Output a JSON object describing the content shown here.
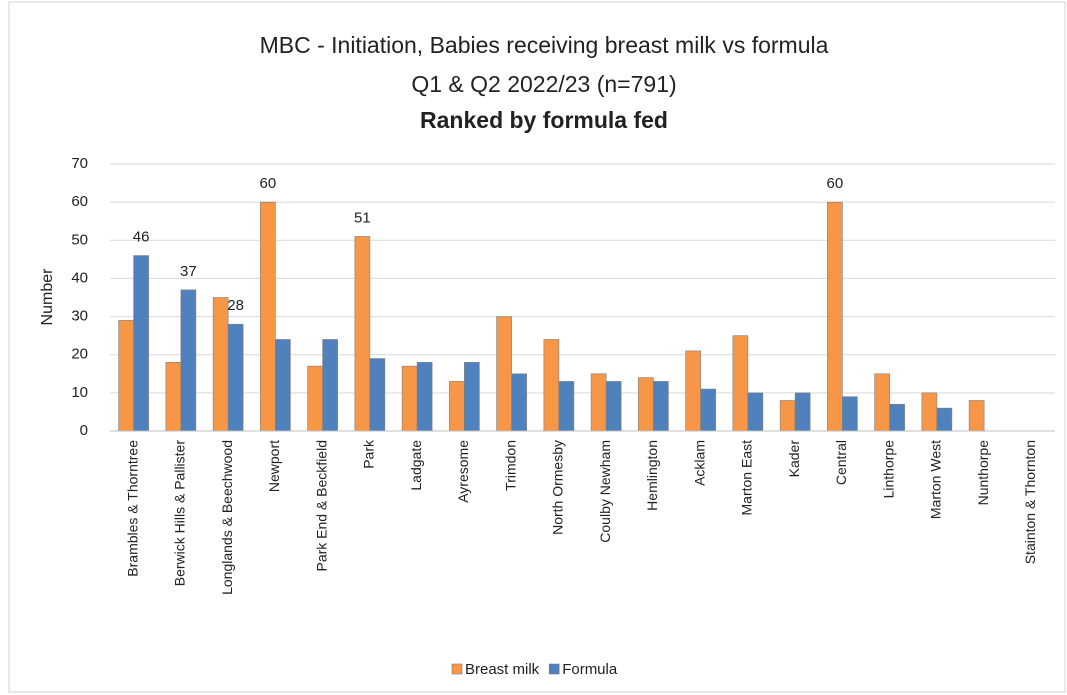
{
  "chart_data": {
    "type": "bar",
    "title": "MBC - Initiation, Babies receiving breast milk vs formula",
    "subtitle": "Q1 & Q2 2022/23 (n=791)",
    "subtitle2": "Ranked by formula fed",
    "y_label": "Number",
    "categories": [
      "Brambles & Thorntree",
      "Berwick Hills & Pallister",
      "Longlands & Beechwood",
      "Newport",
      "Park End & Beckfield",
      "Park",
      "Ladgate",
      "Ayresome",
      "Trimdon",
      "North Ormesby",
      "Coulby Newham",
      "Hemlington",
      "Acklam",
      "Marton East",
      "Kader",
      "Central",
      "Linthorpe",
      "Marton West",
      "Nunthorpe",
      "Stainton & Thornton"
    ],
    "series": [
      {
        "name": "Breast milk",
        "color": "#f79646",
        "values": [
          29,
          18,
          35,
          60,
          17,
          51,
          17,
          13,
          30,
          24,
          15,
          14,
          21,
          25,
          8,
          60,
          15,
          10,
          8,
          0
        ],
        "value_labels": [
          null,
          null,
          null,
          "60",
          null,
          "51",
          null,
          null,
          null,
          null,
          null,
          null,
          null,
          null,
          null,
          "60",
          null,
          null,
          null,
          null
        ]
      },
      {
        "name": "Formula",
        "color": "#4f81bd",
        "values": [
          46,
          37,
          28,
          24,
          24,
          19,
          18,
          18,
          15,
          13,
          13,
          13,
          11,
          10,
          10,
          9,
          7,
          6,
          0,
          0
        ],
        "value_labels": [
          "46",
          "37",
          "28",
          null,
          null,
          null,
          null,
          null,
          null,
          null,
          null,
          null,
          null,
          null,
          null,
          null,
          null,
          null,
          null,
          null
        ]
      }
    ],
    "ylim": [
      0,
      70
    ],
    "yticks": [
      0,
      10,
      20,
      30,
      40,
      50,
      60,
      70
    ],
    "grid": true,
    "legend": "bottom"
  }
}
